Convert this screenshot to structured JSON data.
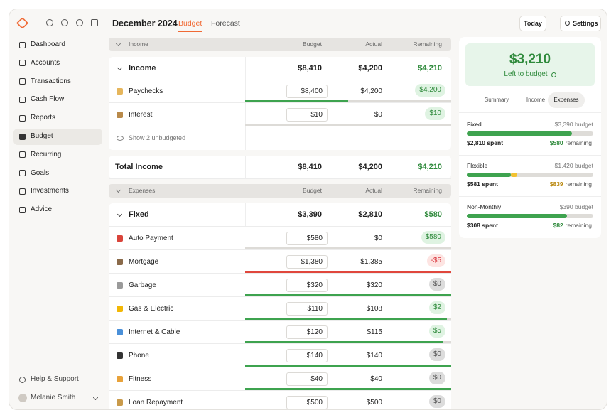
{
  "sidebar": {
    "nav": [
      "Dashboard",
      "Accounts",
      "Transactions",
      "Cash Flow",
      "Reports",
      "Budget",
      "Recurring",
      "Goals",
      "Investments",
      "Advice"
    ],
    "help": "Help & Support",
    "user": "Melanie Smith"
  },
  "header": {
    "title": "December 2024",
    "tabs": [
      "Budget",
      "Forecast"
    ],
    "today": "Today",
    "settings": "Settings"
  },
  "income": {
    "label": "Income",
    "columns": [
      "Budget",
      "Actual",
      "Remaining"
    ],
    "group": {
      "name": "Income",
      "budget": "$8,410",
      "actual": "$4,200",
      "remaining": "$4,210"
    },
    "rows": [
      {
        "name": "Paychecks",
        "budget": "$8,400",
        "actual": "$4,200",
        "remaining": "$4,200"
      },
      {
        "name": "Interest",
        "budget": "$10",
        "actual": "$0",
        "remaining": "$10"
      }
    ],
    "show_unbudgeted": "Show 2 unbudgeted",
    "total": {
      "name": "Total Income",
      "budget": "$8,410",
      "actual": "$4,200",
      "remaining": "$4,210"
    }
  },
  "expenses": {
    "label": "Expenses",
    "columns": [
      "Budget",
      "Actual",
      "Remaining"
    ],
    "group": {
      "name": "Fixed",
      "budget": "$3,390",
      "actual": "$2,810",
      "remaining": "$580"
    },
    "rows": [
      {
        "name": "Auto Payment",
        "budget": "$580",
        "actual": "$0",
        "remaining": "$580"
      },
      {
        "name": "Mortgage",
        "budget": "$1,380",
        "actual": "$1,385",
        "remaining": "-$5"
      },
      {
        "name": "Garbage",
        "budget": "$320",
        "actual": "$320",
        "remaining": "$0"
      },
      {
        "name": "Gas & Electric",
        "budget": "$110",
        "actual": "$108",
        "remaining": "$2"
      },
      {
        "name": "Internet & Cable",
        "budget": "$120",
        "actual": "$115",
        "remaining": "$5"
      },
      {
        "name": "Phone",
        "budget": "$140",
        "actual": "$140",
        "remaining": "$0"
      },
      {
        "name": "Fitness",
        "budget": "$40",
        "actual": "$40",
        "remaining": "$0"
      },
      {
        "name": "Loan Repayment",
        "budget": "$500",
        "actual": "$500",
        "remaining": "$0"
      }
    ]
  },
  "summary": {
    "amount": "$3,210",
    "caption": "Left to budget",
    "tabs": [
      "Summary",
      "Income",
      "Expenses"
    ],
    "groups": [
      {
        "name": "Fixed",
        "budget": "$3,390 budget",
        "spent": "$2,810 spent",
        "remaining_amount": "$580",
        "remaining_label": "remaining"
      },
      {
        "name": "Flexible",
        "budget": "$1,420 budget",
        "spent": "$581 spent",
        "remaining_amount": "$839",
        "remaining_label": "remaining"
      },
      {
        "name": "Non-Monthly",
        "budget": "$390 budget",
        "spent": "$308 spent",
        "remaining_amount": "$82",
        "remaining_label": "remaining"
      }
    ]
  }
}
